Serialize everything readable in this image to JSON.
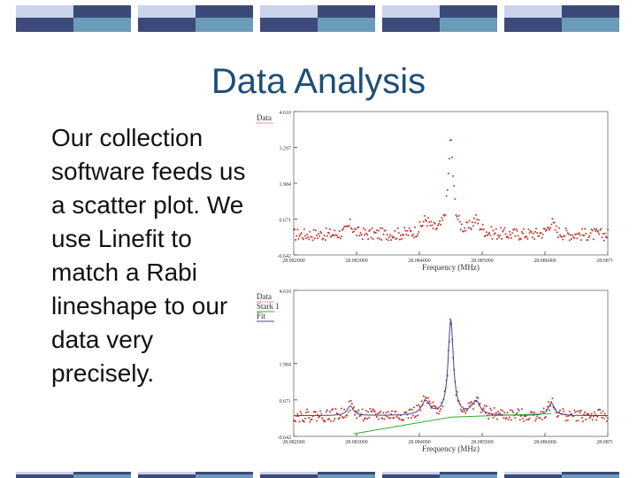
{
  "slide": {
    "title": "Data Analysis",
    "body": "Our collection software feeds us a scatter plot.  We use Linefit to match a Rabi lineshape to our data very precisely."
  },
  "colors": {
    "title": "#1f4e79",
    "band_dark": "#3c4a7a",
    "band_light": "#c9d3ea",
    "band_teal": "#6a9cb8",
    "data_points": "#c0392b",
    "fit_line": "#4a3f8f",
    "stark_line": "#33aa33"
  },
  "chart_data": [
    {
      "type": "scatter",
      "xlabel": "Frequency (MHz)",
      "ylabel": "",
      "legend": [
        "Data"
      ],
      "legend_placement": "top-left",
      "xlim": [
        28.082,
        28.087
      ],
      "ylim": [
        -0.642,
        4.61
      ],
      "yticks": [
        "4.610",
        "3.297",
        "1.984",
        "0.671",
        "-0.642"
      ],
      "xticks": [
        "28.082000",
        "28.083000",
        "28.084000",
        "28.085000",
        "28.086000",
        "28.087000"
      ],
      "peaks": [
        {
          "center": 28.0845,
          "height": 3.4,
          "width": 5e-05
        },
        {
          "center": 28.0841,
          "height": 0.5,
          "width": 8e-05
        },
        {
          "center": 28.0849,
          "height": 0.5,
          "width": 8e-05
        },
        {
          "center": 28.0829,
          "height": 0.35,
          "width": 6e-05
        },
        {
          "center": 28.0861,
          "height": 0.45,
          "width": 6e-05
        }
      ],
      "baseline": 0.1
    },
    {
      "type": "scatter",
      "xlabel": "Frequency (MHz)",
      "ylabel": "",
      "legend": [
        "Data",
        "Stark 1",
        "Fit"
      ],
      "legend_placement": "top-left",
      "xlim": [
        28.082,
        28.087
      ],
      "ylim": [
        -0.642,
        4.61
      ],
      "yticks": [
        "4.610",
        "1.984",
        "0.671",
        "-0.642"
      ],
      "xticks": [
        "28.082000",
        "28.083000",
        "28.084000",
        "28.085000",
        "28.086000",
        "28.087000"
      ],
      "peaks": [
        {
          "center": 28.0845,
          "height": 3.4,
          "width": 5e-05
        },
        {
          "center": 28.0841,
          "height": 0.5,
          "width": 8e-05
        },
        {
          "center": 28.0849,
          "height": 0.5,
          "width": 8e-05
        },
        {
          "center": 28.0829,
          "height": 0.35,
          "width": 6e-05
        },
        {
          "center": 28.0861,
          "height": 0.45,
          "width": 6e-05
        }
      ],
      "baseline": 0.1,
      "stark_line": [
        [
          28.08295,
          -0.55
        ],
        [
          28.0845,
          0.05
        ],
        [
          28.0861,
          0.18
        ]
      ]
    }
  ]
}
